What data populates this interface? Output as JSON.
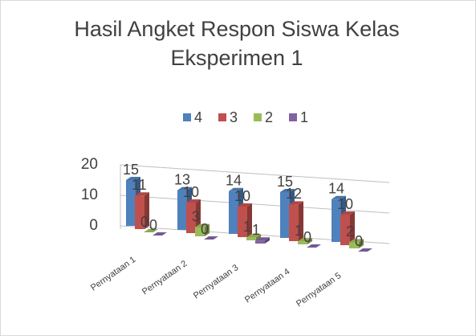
{
  "chart_data": {
    "type": "bar3d",
    "title": "Hasil Angket Respon Siswa Kelas Eksperimen 1",
    "categories": [
      "Pernyataan 1",
      "Pernyataan 2",
      "Pernyataan 3",
      "Pernyataan 4",
      "Pernyataan 5"
    ],
    "series": [
      {
        "name": "4",
        "color": "#4f81bd",
        "values": [
          15,
          13,
          14,
          15,
          14
        ]
      },
      {
        "name": "3",
        "color": "#c0504d",
        "values": [
          11,
          10,
          10,
          12,
          10
        ]
      },
      {
        "name": "2",
        "color": "#9bbb59",
        "values": [
          0,
          3,
          1,
          1,
          2
        ]
      },
      {
        "name": "1",
        "color": "#8064a2",
        "values": [
          0,
          0,
          1,
          0,
          0
        ]
      }
    ],
    "ylim": [
      0,
      20
    ],
    "yticks": [
      0,
      10,
      20
    ],
    "grid": true,
    "legend": "top"
  }
}
